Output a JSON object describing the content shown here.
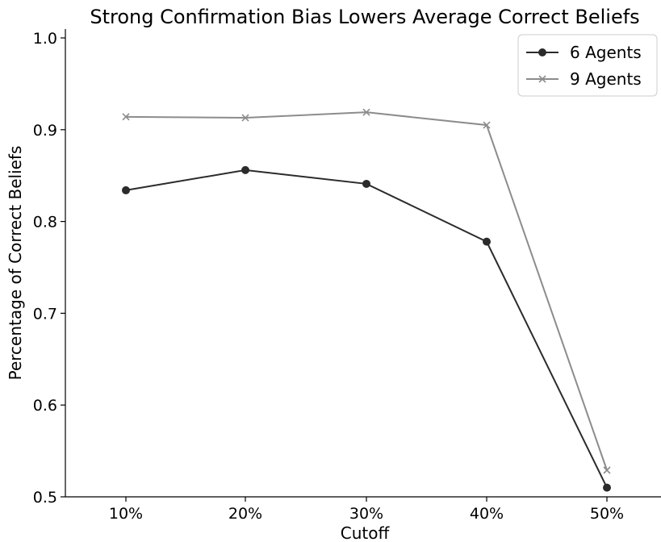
{
  "chart_data": {
    "type": "line",
    "title": "Strong Confirmation Bias Lowers Average Correct Beliefs",
    "xlabel": "Cutoff",
    "ylabel": "Percentage of Correct Beliefs",
    "categories": [
      "10%",
      "20%",
      "30%",
      "40%",
      "50%"
    ],
    "ylim": [
      0.5,
      1.0
    ],
    "yticks": [
      "0.5",
      "0.6",
      "0.7",
      "0.8",
      "0.9",
      "1.0"
    ],
    "grid": false,
    "legend_position": "top-right",
    "series": [
      {
        "name": "6 Agents",
        "values": [
          0.834,
          0.856,
          0.841,
          0.778,
          0.51
        ],
        "color": "#2b2b2b",
        "marker": "circle"
      },
      {
        "name": "9 Agents",
        "values": [
          0.914,
          0.913,
          0.919,
          0.905,
          0.529
        ],
        "color": "#8c8c8c",
        "marker": "x"
      }
    ]
  }
}
